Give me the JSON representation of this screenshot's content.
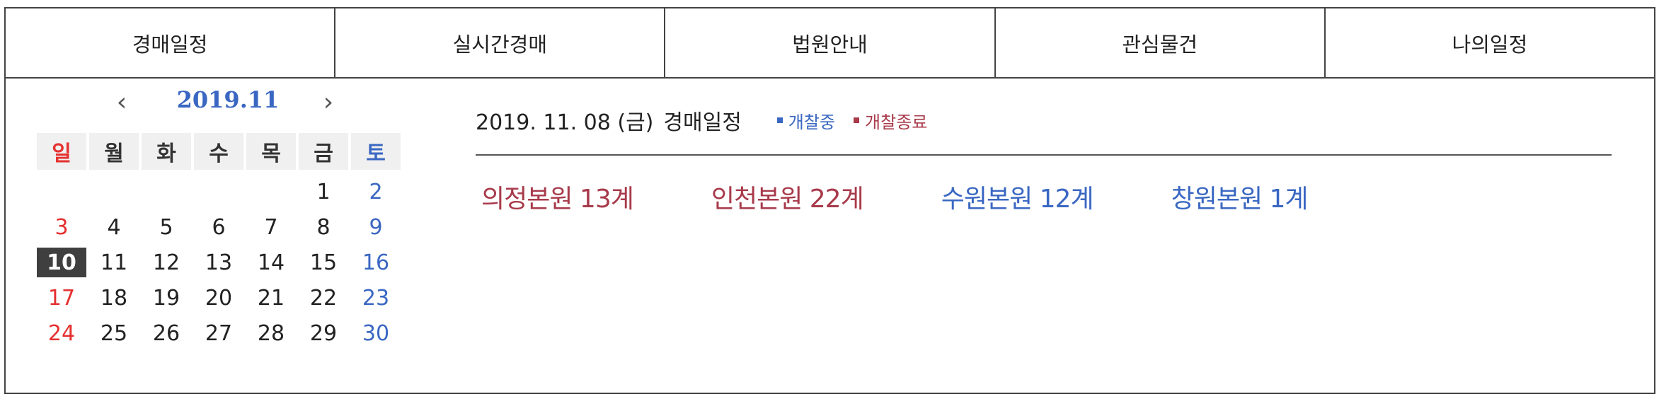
{
  "tabs": [
    "경매일정",
    "실시간경매",
    "법원안내",
    "관심물건",
    "나의일정"
  ],
  "calendar": {
    "month_label": "2019.11",
    "prev_icon": "chevron-left-icon",
    "next_icon": "chevron-right-icon",
    "weekdays": [
      "일",
      "월",
      "화",
      "수",
      "목",
      "금",
      "토"
    ],
    "weeks": [
      [
        "",
        "",
        "",
        "",
        "",
        "1",
        "2"
      ],
      [
        "3",
        "4",
        "5",
        "6",
        "7",
        "8",
        "9"
      ],
      [
        "10",
        "11",
        "12",
        "13",
        "14",
        "15",
        "16"
      ],
      [
        "17",
        "18",
        "19",
        "20",
        "21",
        "22",
        "23"
      ],
      [
        "24",
        "25",
        "26",
        "27",
        "28",
        "29",
        "30"
      ]
    ],
    "selected_day": "10",
    "colors": {
      "sunday": "#e53030",
      "saturday": "#3a67c2",
      "month": "#3a67c2",
      "selected_bg": "#3f3f3f"
    }
  },
  "schedule": {
    "date_label": "2019. 11. 08 (금)",
    "title": "경매일정",
    "legend": [
      {
        "label": "개찰중",
        "color": "#3a67c2"
      },
      {
        "label": "개찰종료",
        "color": "#a83a4b"
      }
    ],
    "courts": [
      {
        "label": "의정본원 13계",
        "color": "#a83a4b"
      },
      {
        "label": "인천본원 22계",
        "color": "#a83a4b"
      },
      {
        "label": "수원본원 12계",
        "color": "#3a67c2"
      },
      {
        "label": "창원본원 1계",
        "color": "#3a67c2"
      }
    ]
  }
}
